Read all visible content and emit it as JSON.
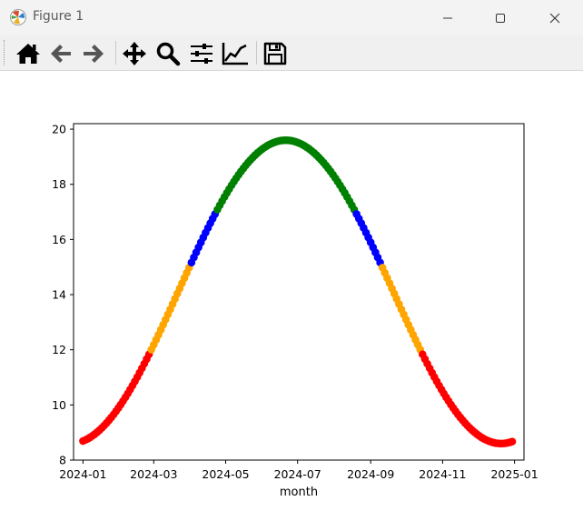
{
  "window": {
    "title": "Figure 1",
    "icons": [
      "matplotlib-app-icon",
      "minimize-icon",
      "maximize-icon",
      "close-icon"
    ]
  },
  "toolbar": {
    "buttons": [
      {
        "name": "home",
        "icon": "home-icon"
      },
      {
        "name": "back",
        "icon": "back-arrow-icon"
      },
      {
        "name": "forward",
        "icon": "forward-arrow-icon"
      },
      {
        "name": "pan",
        "icon": "pan-move-icon"
      },
      {
        "name": "zoom",
        "icon": "zoom-magnifier-icon"
      },
      {
        "name": "subplots",
        "icon": "configure-subplots-icon"
      },
      {
        "name": "edit-axes",
        "icon": "edit-axes-curve-icon"
      },
      {
        "name": "save",
        "icon": "save-floppy-icon"
      }
    ]
  },
  "chart_data": {
    "type": "scatter",
    "title": "",
    "xlabel": "month",
    "ylabel": "",
    "x_tick_labels": [
      "2024-01",
      "2024-03",
      "2024-05",
      "2024-07",
      "2024-09",
      "2024-11",
      "2025-01"
    ],
    "y_ticks": [
      8,
      10,
      12,
      14,
      16,
      18,
      20
    ],
    "ylim": [
      8,
      20.2
    ],
    "xlim": [
      "2023-12-24",
      "2025-01-09"
    ],
    "grid": false,
    "legend": "none",
    "x_range": [
      "2024-01-01",
      "2024-12-30"
    ],
    "x_step_days": 2,
    "curve": {
      "min_value": 8.6,
      "max_value": 19.6,
      "peak_date": "2024-06-21"
    },
    "color_bands": [
      {
        "range": "< 12",
        "color": "#ff0000"
      },
      {
        "range": "12 - 15",
        "color": "#ffa500"
      },
      {
        "range": "15 - 17",
        "color": "#0000ff"
      },
      {
        "range": ">= 17",
        "color": "#008000"
      }
    ],
    "threshold_values": [
      12,
      15,
      17
    ]
  }
}
